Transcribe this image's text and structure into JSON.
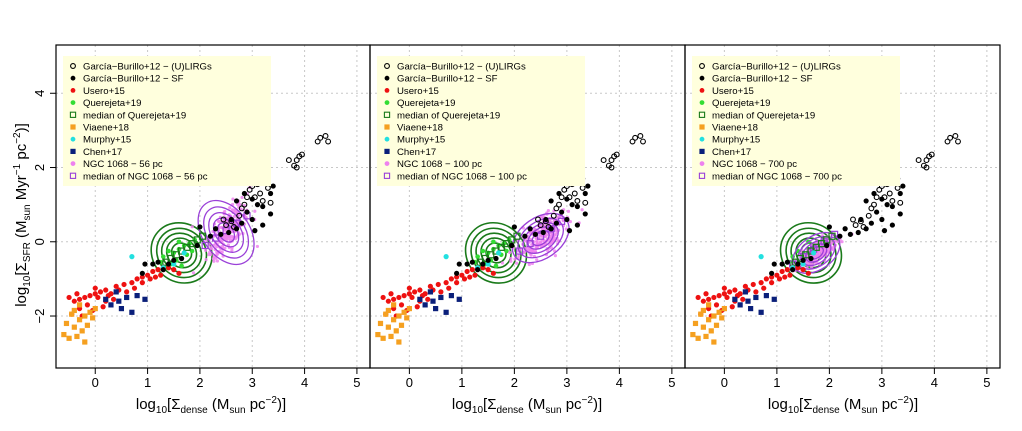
{
  "figure": {
    "xlabel_prefix": "log",
    "xlabel_sub10": "10",
    "xlabel_mid": "[Σ",
    "xlabel_sub": "dense",
    "xlabel_unit": " (M",
    "xlabel_unit_sub": "sun",
    "xlabel_unit2": " pc",
    "xlabel_sup": "−2",
    "xlabel_end": ")]",
    "ylabel_prefix": "log",
    "ylabel_sub10": "10",
    "ylabel_mid": "[Σ",
    "ylabel_sub": "SFR",
    "ylabel_unit": " (M",
    "ylabel_unit_sub": "sun",
    "ylabel_unit2": " Myr",
    "ylabel_sup1": "−1",
    "ylabel_unit3": " pc",
    "ylabel_sup2": "−2",
    "ylabel_end": ")]",
    "xlim": [
      -0.75,
      5.25
    ],
    "ylim": [
      -3.4,
      5.3
    ],
    "xticks": [
      0,
      1,
      2,
      3,
      4,
      5
    ],
    "yticks": [
      -2,
      0,
      2,
      4
    ],
    "xtick_labels": [
      "0",
      "1",
      "2",
      "3",
      "4",
      "5"
    ],
    "ytick_labels": [
      "−2",
      "0",
      "2",
      "4"
    ],
    "grid": true,
    "legend_position": "top-left",
    "colors": {
      "gb_lirgs": "#000000",
      "gb_sf": "#000000",
      "usero": "#ee1111",
      "querejeta": "#33dd33",
      "querejeta_median": "#1a7a1a",
      "viaene": "#f5a020",
      "murphy": "#22e0e0",
      "chen": "#0a1f7a",
      "ngc": "#ee82ee",
      "ngc_median": "#9a40d8",
      "legend_bg": "#ffffdd"
    }
  },
  "chart_data": [
    {
      "type": "scatter",
      "panel": 1,
      "legend": [
        "García−Burillo+12 − (U)LIRGs",
        "García−Burillo+12 − SF",
        "Usero+15",
        "Querejeta+19",
        "median of Querejeta+19",
        "Viaene+18",
        "Murphy+15",
        "Chen+17",
        "NGC 1068 − 56 pc",
        "median of NGC 1068 − 56 pc"
      ],
      "ngc_center": [
        2.55,
        0.35
      ],
      "ngc_spread": [
        0.45,
        0.85
      ],
      "ngc_contour_center": [
        2.5,
        0.25
      ],
      "ngc_contour_radius": [
        0.45,
        0.95
      ]
    },
    {
      "type": "scatter",
      "panel": 2,
      "legend": [
        "García−Burillo+12 − (U)LIRGs",
        "García−Burillo+12 − SF",
        "Usero+15",
        "Querejeta+19",
        "median of Querejeta+19",
        "Viaene+18",
        "Murphy+15",
        "Chen+17",
        "NGC 1068 − 100 pc",
        "median of NGC 1068 − 100 pc"
      ],
      "ngc_center": [
        2.55,
        0.15
      ],
      "ngc_spread": [
        0.55,
        0.6
      ],
      "ngc_contour_center": [
        2.5,
        0.1
      ],
      "ngc_contour_radius": [
        0.6,
        0.55
      ]
    },
    {
      "type": "scatter",
      "panel": 3,
      "legend": [
        "García−Burillo+12 − (U)LIRGs",
        "García−Burillo+12 − SF",
        "Usero+15",
        "Querejeta+19",
        "median of Querejeta+19",
        "Viaene+18",
        "Murphy+15",
        "Chen+17",
        "NGC 1068 − 700 pc",
        "median of NGC 1068 − 700 pc"
      ],
      "ngc_center": [
        1.8,
        -0.25
      ],
      "ngc_spread": [
        0.4,
        0.35
      ],
      "ngc_contour_center": [
        1.75,
        -0.3
      ],
      "ngc_contour_radius": [
        0.5,
        0.45
      ]
    }
  ],
  "shared_data": {
    "gb_lirgs": [
      [
        3.0,
        1.9
      ],
      [
        3.05,
        1.7
      ],
      [
        3.1,
        1.55
      ],
      [
        3.2,
        1.75
      ],
      [
        3.15,
        1.3
      ],
      [
        2.95,
        1.4
      ],
      [
        3.0,
        1.5
      ],
      [
        3.25,
        1.6
      ],
      [
        2.9,
        1.2
      ],
      [
        3.3,
        1.45
      ],
      [
        3.05,
        1.2
      ],
      [
        3.2,
        1.1
      ],
      [
        2.85,
        1.0
      ],
      [
        3.35,
        1.05
      ],
      [
        3.9,
        2.3
      ],
      [
        3.85,
        2.2
      ],
      [
        3.95,
        2.35
      ],
      [
        3.7,
        2.2
      ],
      [
        3.8,
        2.05
      ],
      [
        3.85,
        2.0
      ],
      [
        4.3,
        2.8
      ],
      [
        4.4,
        2.85
      ],
      [
        4.25,
        2.7
      ],
      [
        4.45,
        2.7
      ],
      [
        2.6,
        0.55
      ],
      [
        2.75,
        0.7
      ],
      [
        2.65,
        0.4
      ],
      [
        2.5,
        0.45
      ],
      [
        2.8,
        0.9
      ],
      [
        2.45,
        0.6
      ],
      [
        2.9,
        1.6
      ],
      [
        3.1,
        1.85
      ]
    ],
    "gb_sf": [
      [
        2.7,
        1.1
      ],
      [
        2.85,
        1.3
      ],
      [
        3.0,
        1.15
      ],
      [
        3.1,
        1.0
      ],
      [
        3.2,
        0.95
      ],
      [
        3.35,
        1.3
      ],
      [
        3.4,
        1.5
      ],
      [
        3.3,
        1.7
      ],
      [
        2.9,
        0.8
      ],
      [
        2.6,
        0.6
      ],
      [
        2.55,
        0.25
      ],
      [
        2.7,
        0.35
      ],
      [
        3.0,
        0.6
      ],
      [
        3.2,
        0.45
      ],
      [
        3.35,
        0.75
      ],
      [
        2.8,
        0.5
      ],
      [
        3.05,
        0.3
      ],
      [
        2.4,
        0.2
      ],
      [
        2.3,
        0.35
      ],
      [
        1.95,
        -0.1
      ],
      [
        1.65,
        -0.45
      ],
      [
        1.5,
        -0.5
      ],
      [
        1.4,
        -0.6
      ],
      [
        1.2,
        -0.55
      ],
      [
        1.1,
        -0.6
      ],
      [
        1.3,
        -0.75
      ],
      [
        0.95,
        -0.6
      ],
      [
        0.9,
        -0.85
      ],
      [
        2.0,
        0.4
      ],
      [
        2.2,
        0.15
      ]
    ],
    "usero": [
      [
        -0.5,
        -1.5
      ],
      [
        -0.4,
        -1.6
      ],
      [
        -0.3,
        -1.55
      ],
      [
        -0.2,
        -1.5
      ],
      [
        -0.1,
        -1.45
      ],
      [
        0.0,
        -1.4
      ],
      [
        0.1,
        -1.35
      ],
      [
        0.2,
        -1.3
      ],
      [
        0.3,
        -1.4
      ],
      [
        0.45,
        -1.3
      ],
      [
        0.55,
        -1.15
      ],
      [
        0.7,
        -1.1
      ],
      [
        0.8,
        -1.0
      ],
      [
        0.9,
        -0.95
      ],
      [
        1.0,
        -0.9
      ],
      [
        1.1,
        -0.8
      ],
      [
        1.2,
        -0.75
      ],
      [
        1.3,
        -0.7
      ],
      [
        1.4,
        -0.7
      ],
      [
        1.5,
        -0.75
      ],
      [
        0.35,
        -1.55
      ],
      [
        0.2,
        -1.6
      ],
      [
        0.05,
        -1.5
      ],
      [
        -0.15,
        -1.7
      ],
      [
        -0.3,
        -1.8
      ],
      [
        -0.45,
        -1.95
      ],
      [
        -0.25,
        -2.0
      ],
      [
        -0.05,
        -1.85
      ],
      [
        0.15,
        -1.75
      ],
      [
        0.6,
        -1.35
      ],
      [
        0.75,
        -1.25
      ],
      [
        0.9,
        -1.1
      ],
      [
        1.05,
        -1.0
      ],
      [
        1.15,
        -0.95
      ],
      [
        1.25,
        -0.9
      ],
      [
        0.0,
        -1.25
      ],
      [
        -0.35,
        -1.4
      ],
      [
        0.25,
        -1.45
      ],
      [
        0.4,
        -1.2
      ],
      [
        1.6,
        -0.85
      ]
    ],
    "querejeta": [
      [
        1.3,
        -0.4
      ],
      [
        1.5,
        -0.3
      ],
      [
        1.6,
        -0.2
      ],
      [
        1.7,
        -0.1
      ],
      [
        1.55,
        -0.5
      ],
      [
        1.45,
        -0.6
      ],
      [
        1.35,
        -0.7
      ],
      [
        1.75,
        -0.35
      ],
      [
        1.8,
        -0.05
      ],
      [
        1.9,
        0.05
      ],
      [
        1.65,
        -0.65
      ],
      [
        1.4,
        -0.25
      ],
      [
        1.25,
        -0.55
      ],
      [
        1.6,
        0.0
      ],
      [
        1.85,
        -0.25
      ]
    ],
    "querejeta_median": [
      [
        1.35,
        -0.55
      ],
      [
        1.45,
        -0.45
      ],
      [
        1.55,
        -0.35
      ],
      [
        1.65,
        -0.25
      ],
      [
        1.75,
        -0.15
      ],
      [
        1.85,
        -0.05
      ],
      [
        1.95,
        0.05
      ],
      [
        2.05,
        0.15
      ]
    ],
    "viaene": [
      [
        -0.6,
        -2.5
      ],
      [
        -0.5,
        -2.6
      ],
      [
        -0.35,
        -2.55
      ],
      [
        -0.2,
        -2.7
      ],
      [
        -0.4,
        -2.3
      ],
      [
        -0.3,
        -2.1
      ],
      [
        -0.45,
        -1.95
      ],
      [
        -0.55,
        -2.2
      ],
      [
        -0.25,
        -2.4
      ],
      [
        -0.15,
        -2.25
      ],
      [
        -0.05,
        -2.05
      ],
      [
        -0.1,
        -1.9
      ],
      [
        -0.3,
        -1.7
      ],
      [
        -0.4,
        -1.85
      ],
      [
        -0.2,
        -2.0
      ],
      [
        0.0,
        -1.8
      ]
    ],
    "murphy": [
      [
        0.7,
        -0.4
      ],
      [
        1.3,
        -0.7
      ],
      [
        1.5,
        -0.6
      ],
      [
        1.7,
        -0.3
      ]
    ],
    "chen": [
      [
        0.3,
        -1.7
      ],
      [
        0.45,
        -1.6
      ],
      [
        0.6,
        -1.5
      ],
      [
        0.8,
        -1.45
      ],
      [
        0.95,
        -1.55
      ],
      [
        0.7,
        -1.9
      ],
      [
        0.4,
        -1.35
      ],
      [
        0.5,
        -1.8
      ],
      [
        0.2,
        -1.55
      ]
    ],
    "ngc_median": [
      [
        2.1,
        -0.1
      ],
      [
        2.3,
        0.1
      ],
      [
        2.5,
        0.3
      ],
      [
        2.7,
        0.5
      ],
      [
        2.9,
        0.7
      ]
    ]
  }
}
